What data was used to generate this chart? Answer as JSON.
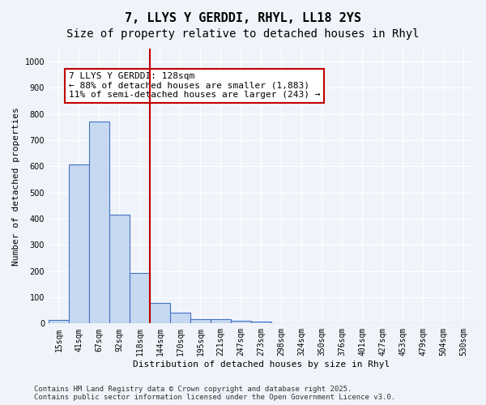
{
  "title": "7, LLYS Y GERDDI, RHYL, LL18 2YS",
  "subtitle": "Size of property relative to detached houses in Rhyl",
  "xlabel": "Distribution of detached houses by size in Rhyl",
  "ylabel": "Number of detached properties",
  "categories": [
    "15sqm",
    "41sqm",
    "67sqm",
    "92sqm",
    "118sqm",
    "144sqm",
    "170sqm",
    "195sqm",
    "221sqm",
    "247sqm",
    "273sqm",
    "298sqm",
    "324sqm",
    "350sqm",
    "376sqm",
    "401sqm",
    "427sqm",
    "453sqm",
    "479sqm",
    "504sqm",
    "530sqm"
  ],
  "values": [
    12,
    607,
    773,
    415,
    192,
    78,
    40,
    16,
    16,
    11,
    8,
    0,
    0,
    0,
    0,
    0,
    0,
    0,
    0,
    0,
    0
  ],
  "bar_color": "#c6d9f0",
  "bar_edge_color": "#4472c4",
  "vline_x": 4.5,
  "vline_color": "#c00000",
  "annotation_text": "7 LLYS Y GERDDI: 128sqm\n← 88% of detached houses are smaller (1,883)\n11% of semi-detached houses are larger (243) →",
  "annotation_box_color": "#ffffff",
  "annotation_box_edge_color": "#c00000",
  "ylim": [
    0,
    1050
  ],
  "yticks": [
    0,
    100,
    200,
    300,
    400,
    500,
    600,
    700,
    800,
    900,
    1000
  ],
  "footer": "Contains HM Land Registry data © Crown copyright and database right 2025.\nContains public sector information licensed under the Open Government Licence v3.0.",
  "bg_color": "#f0f4fa",
  "grid_color": "#ffffff",
  "title_fontsize": 11,
  "subtitle_fontsize": 10,
  "label_fontsize": 8,
  "tick_fontsize": 7,
  "footer_fontsize": 6.5
}
